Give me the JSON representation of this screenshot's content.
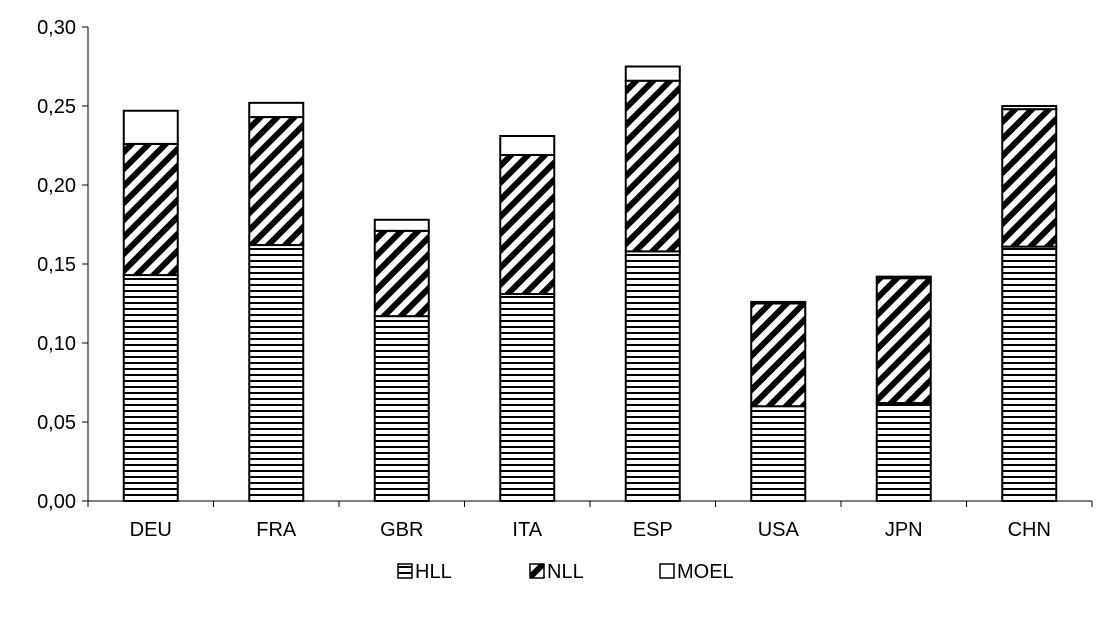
{
  "chart_data": {
    "type": "bar",
    "stacked": true,
    "title": "",
    "xlabel": "",
    "ylabel": "",
    "categories": [
      "DEU",
      "FRA",
      "GBR",
      "ITA",
      "ESP",
      "USA",
      "JPN",
      "CHN"
    ],
    "series": [
      {
        "name": "HLL",
        "pattern": "horizontal-lines",
        "values": [
          0.143,
          0.162,
          0.117,
          0.131,
          0.158,
          0.06,
          0.062,
          0.161
        ]
      },
      {
        "name": "NLL",
        "pattern": "diagonal-lines",
        "values": [
          0.083,
          0.081,
          0.054,
          0.088,
          0.108,
          0.065,
          0.079,
          0.087
        ]
      },
      {
        "name": "MOEL",
        "pattern": "empty",
        "values": [
          0.021,
          0.009,
          0.007,
          0.012,
          0.009,
          0.001,
          0.001,
          0.002
        ]
      }
    ],
    "ylim": [
      0,
      0.3
    ],
    "yticks": [
      "0,00",
      "0,05",
      "0,10",
      "0,15",
      "0,20",
      "0,25",
      "0,30"
    ],
    "grid": false,
    "legend_position": "bottom",
    "colors": {
      "stroke": "#000000",
      "fill": "#ffffff"
    }
  }
}
